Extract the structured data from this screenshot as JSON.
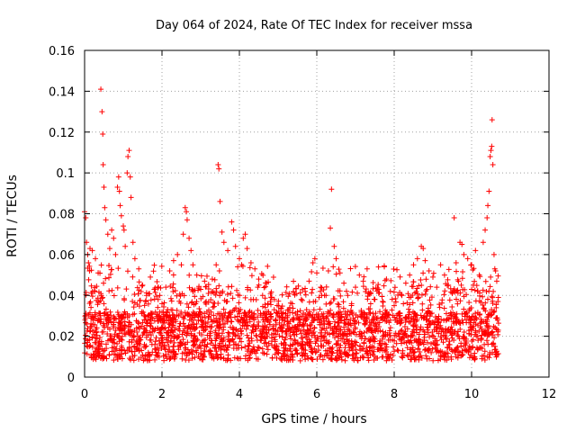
{
  "chart_data": {
    "type": "scatter",
    "title": "Day 064 of 2024, Rate Of TEC Index for receiver mssa",
    "xlabel": "GPS time / hours",
    "ylabel": "ROTI / TECUs",
    "xlim": [
      0,
      12
    ],
    "ylim": [
      0,
      0.16
    ],
    "x_ticks": [
      0,
      2,
      4,
      6,
      8,
      10,
      12
    ],
    "x_tick_labels": [
      "0",
      "2",
      "4",
      "6",
      "8",
      "10",
      "12"
    ],
    "y_ticks": [
      0,
      0.02,
      0.04,
      0.06,
      0.08,
      0.1,
      0.12,
      0.14,
      0.16
    ],
    "y_tick_labels": [
      "0",
      "0.02",
      "0.04",
      "0.06",
      "0.08",
      "0.1",
      "0.12",
      "0.14",
      "0.16"
    ],
    "grid": true,
    "marker": "+",
    "color": "#ff0000",
    "series": [
      {
        "name": "ROTI",
        "x_range": [
          0,
          10.7
        ],
        "points": [
          [
            0.0,
            0.081
          ],
          [
            0.03,
            0.078
          ],
          [
            0.05,
            0.066
          ],
          [
            0.08,
            0.06
          ],
          [
            0.1,
            0.056
          ],
          [
            0.14,
            0.063
          ],
          [
            0.2,
            0.062
          ],
          [
            0.28,
            0.058
          ],
          [
            0.35,
            0.051
          ],
          [
            0.42,
            0.141
          ],
          [
            0.45,
            0.13
          ],
          [
            0.47,
            0.119
          ],
          [
            0.48,
            0.104
          ],
          [
            0.5,
            0.093
          ],
          [
            0.52,
            0.083
          ],
          [
            0.55,
            0.077
          ],
          [
            0.6,
            0.07
          ],
          [
            0.65,
            0.063
          ],
          [
            0.7,
            0.072
          ],
          [
            0.75,
            0.068
          ],
          [
            0.8,
            0.06
          ],
          [
            0.85,
            0.093
          ],
          [
            0.88,
            0.098
          ],
          [
            0.9,
            0.091
          ],
          [
            0.92,
            0.084
          ],
          [
            0.95,
            0.079
          ],
          [
            1.0,
            0.074
          ],
          [
            1.02,
            0.072
          ],
          [
            1.05,
            0.064
          ],
          [
            1.1,
            0.1
          ],
          [
            1.12,
            0.108
          ],
          [
            1.15,
            0.111
          ],
          [
            1.18,
            0.098
          ],
          [
            1.2,
            0.088
          ],
          [
            1.25,
            0.066
          ],
          [
            1.3,
            0.058
          ],
          [
            1.4,
            0.053
          ],
          [
            1.5,
            0.045
          ],
          [
            1.6,
            0.04
          ],
          [
            1.7,
            0.049
          ],
          [
            1.8,
            0.043
          ],
          [
            1.9,
            0.038
          ],
          [
            2.0,
            0.036
          ],
          [
            2.1,
            0.044
          ],
          [
            2.2,
            0.052
          ],
          [
            2.3,
            0.057
          ],
          [
            2.4,
            0.06
          ],
          [
            2.5,
            0.055
          ],
          [
            2.55,
            0.07
          ],
          [
            2.6,
            0.083
          ],
          [
            2.63,
            0.081
          ],
          [
            2.65,
            0.077
          ],
          [
            2.7,
            0.068
          ],
          [
            2.75,
            0.062
          ],
          [
            2.8,
            0.055
          ],
          [
            2.9,
            0.05
          ],
          [
            3.0,
            0.043
          ],
          [
            3.1,
            0.047
          ],
          [
            3.2,
            0.041
          ],
          [
            3.3,
            0.048
          ],
          [
            3.4,
            0.055
          ],
          [
            3.45,
            0.104
          ],
          [
            3.47,
            0.102
          ],
          [
            3.5,
            0.086
          ],
          [
            3.55,
            0.071
          ],
          [
            3.6,
            0.066
          ],
          [
            3.7,
            0.062
          ],
          [
            3.8,
            0.076
          ],
          [
            3.85,
            0.072
          ],
          [
            3.9,
            0.064
          ],
          [
            4.0,
            0.058
          ],
          [
            4.1,
            0.068
          ],
          [
            4.15,
            0.07
          ],
          [
            4.2,
            0.063
          ],
          [
            4.3,
            0.056
          ],
          [
            4.4,
            0.053
          ],
          [
            4.5,
            0.048
          ],
          [
            4.6,
            0.04
          ],
          [
            4.7,
            0.046
          ],
          [
            4.8,
            0.037
          ],
          [
            4.9,
            0.033
          ],
          [
            5.0,
            0.03
          ],
          [
            5.1,
            0.028
          ],
          [
            5.2,
            0.031
          ],
          [
            5.3,
            0.034
          ],
          [
            5.4,
            0.029
          ],
          [
            5.5,
            0.032
          ],
          [
            5.6,
            0.038
          ],
          [
            5.7,
            0.042
          ],
          [
            5.8,
            0.047
          ],
          [
            5.9,
            0.056
          ],
          [
            5.95,
            0.058
          ],
          [
            6.0,
            0.051
          ],
          [
            6.1,
            0.044
          ],
          [
            6.2,
            0.04
          ],
          [
            6.3,
            0.052
          ],
          [
            6.35,
            0.073
          ],
          [
            6.38,
            0.092
          ],
          [
            6.45,
            0.064
          ],
          [
            6.5,
            0.058
          ],
          [
            6.6,
            0.051
          ],
          [
            6.7,
            0.046
          ],
          [
            6.8,
            0.04
          ],
          [
            6.9,
            0.036
          ],
          [
            7.0,
            0.044
          ],
          [
            7.1,
            0.05
          ],
          [
            7.2,
            0.047
          ],
          [
            7.3,
            0.053
          ],
          [
            7.4,
            0.041
          ],
          [
            7.5,
            0.038
          ],
          [
            7.6,
            0.043
          ],
          [
            7.7,
            0.037
          ],
          [
            7.8,
            0.048
          ],
          [
            7.9,
            0.042
          ],
          [
            8.0,
            0.035
          ],
          [
            8.1,
            0.031
          ],
          [
            8.2,
            0.04
          ],
          [
            8.3,
            0.046
          ],
          [
            8.4,
            0.05
          ],
          [
            8.5,
            0.055
          ],
          [
            8.6,
            0.058
          ],
          [
            8.7,
            0.064
          ],
          [
            8.75,
            0.063
          ],
          [
            8.8,
            0.057
          ],
          [
            8.9,
            0.052
          ],
          [
            9.0,
            0.049
          ],
          [
            9.1,
            0.044
          ],
          [
            9.2,
            0.055
          ],
          [
            9.3,
            0.05
          ],
          [
            9.4,
            0.045
          ],
          [
            9.5,
            0.041
          ],
          [
            9.55,
            0.078
          ],
          [
            9.6,
            0.056
          ],
          [
            9.7,
            0.066
          ],
          [
            9.75,
            0.065
          ],
          [
            9.8,
            0.06
          ],
          [
            9.9,
            0.058
          ],
          [
            10.0,
            0.055
          ],
          [
            10.1,
            0.062
          ],
          [
            10.2,
            0.05
          ],
          [
            10.3,
            0.066
          ],
          [
            10.35,
            0.072
          ],
          [
            10.4,
            0.078
          ],
          [
            10.42,
            0.084
          ],
          [
            10.45,
            0.091
          ],
          [
            10.48,
            0.108
          ],
          [
            10.5,
            0.111
          ],
          [
            10.52,
            0.113
          ],
          [
            10.53,
            0.126
          ],
          [
            10.55,
            0.104
          ],
          [
            10.58,
            0.06
          ],
          [
            10.6,
            0.053
          ],
          [
            10.62,
            0.052
          ],
          [
            10.65,
            0.047
          ],
          [
            10.68,
            0.037
          ]
        ]
      }
    ]
  }
}
